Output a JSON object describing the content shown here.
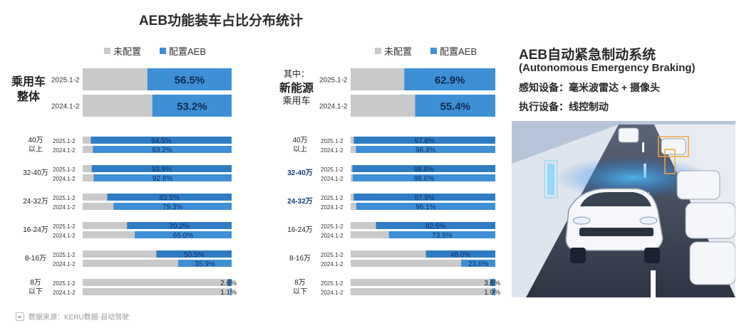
{
  "title": "AEB功能装车占比分布统计",
  "legend": {
    "unconfigured": "未配置",
    "configured": "配置AEB"
  },
  "colors": {
    "unconfigured": "#c9c9c9",
    "configured": "#3d8fd6",
    "configured_dark": "#2f7cc4"
  },
  "right_panel": {
    "title": "AEB自动紧急制动系统",
    "subtitle": "(Autonomous Emergency Braking)",
    "line1": "感知设备：毫米波雷达 + 摄像头",
    "line2": "执行设备：线控制动"
  },
  "footer": "数据来源：KERU数据-自动驾驶",
  "chart_data": [
    {
      "type": "bar",
      "name_lines": [
        "乘用车",
        "整体"
      ],
      "prefix": "",
      "periods": [
        "2025.1-2",
        "2024.1-2"
      ],
      "overall": {
        "values": [
          56.5,
          53.2
        ],
        "labels": [
          "56.5%",
          "53.2%"
        ]
      },
      "segments": [
        {
          "label_lines": [
            "40万",
            "以上"
          ],
          "values": [
            94.5,
            93.2
          ],
          "labels": [
            "94.5%",
            "93.2%"
          ]
        },
        {
          "label_lines": [
            "32-40万"
          ],
          "values": [
            93.9,
            92.6
          ],
          "labels": [
            "93.9%",
            "92.6%"
          ]
        },
        {
          "label_lines": [
            "24-32万"
          ],
          "values": [
            83.5,
            79.3
          ],
          "labels": [
            "83.5%",
            "79.3%"
          ]
        },
        {
          "label_lines": [
            "16-24万"
          ],
          "values": [
            70.2,
            65.0
          ],
          "labels": [
            "70.2%",
            "65.0%"
          ]
        },
        {
          "label_lines": [
            "8-16万"
          ],
          "values": [
            50.5,
            35.9
          ],
          "labels": [
            "50.5%",
            "35.9%"
          ]
        },
        {
          "label_lines": [
            "8万",
            "以下"
          ],
          "values": [
            2.6,
            1.1
          ],
          "labels": [
            "2.6%",
            "1.1%"
          ]
        }
      ]
    },
    {
      "type": "bar",
      "name_lines": [
        "新能源",
        "乘用车"
      ],
      "prefix": "其中：",
      "periods": [
        "2025.1-2",
        "2024.1-2"
      ],
      "overall": {
        "values": [
          62.9,
          55.4
        ],
        "labels": [
          "62.9%",
          "55.4%"
        ]
      },
      "segments": [
        {
          "label_lines": [
            "40万",
            "以上"
          ],
          "values": [
            97.8,
            96.4
          ],
          "labels": [
            "97.8%",
            "96.4%"
          ]
        },
        {
          "label_lines": [
            "32-40万"
          ],
          "values": [
            98.8,
            98.6
          ],
          "labels": [
            "98.8%",
            "98.6%"
          ]
        },
        {
          "label_lines": [
            "24-32万"
          ],
          "values": [
            97.9,
            96.1
          ],
          "labels": [
            "97.9%",
            "96.1%"
          ]
        },
        {
          "label_lines": [
            "16-24万"
          ],
          "values": [
            82.5,
            73.5
          ],
          "labels": [
            "82.5%",
            "73.5%"
          ]
        },
        {
          "label_lines": [
            "8-16万"
          ],
          "values": [
            48.0,
            23.6
          ],
          "labels": [
            "48.0%",
            "23.6%"
          ]
        },
        {
          "label_lines": [
            "8万",
            "以下"
          ],
          "values": [
            3.6,
            1.9
          ],
          "labels": [
            "3.6%",
            "1.9%"
          ]
        }
      ]
    }
  ]
}
